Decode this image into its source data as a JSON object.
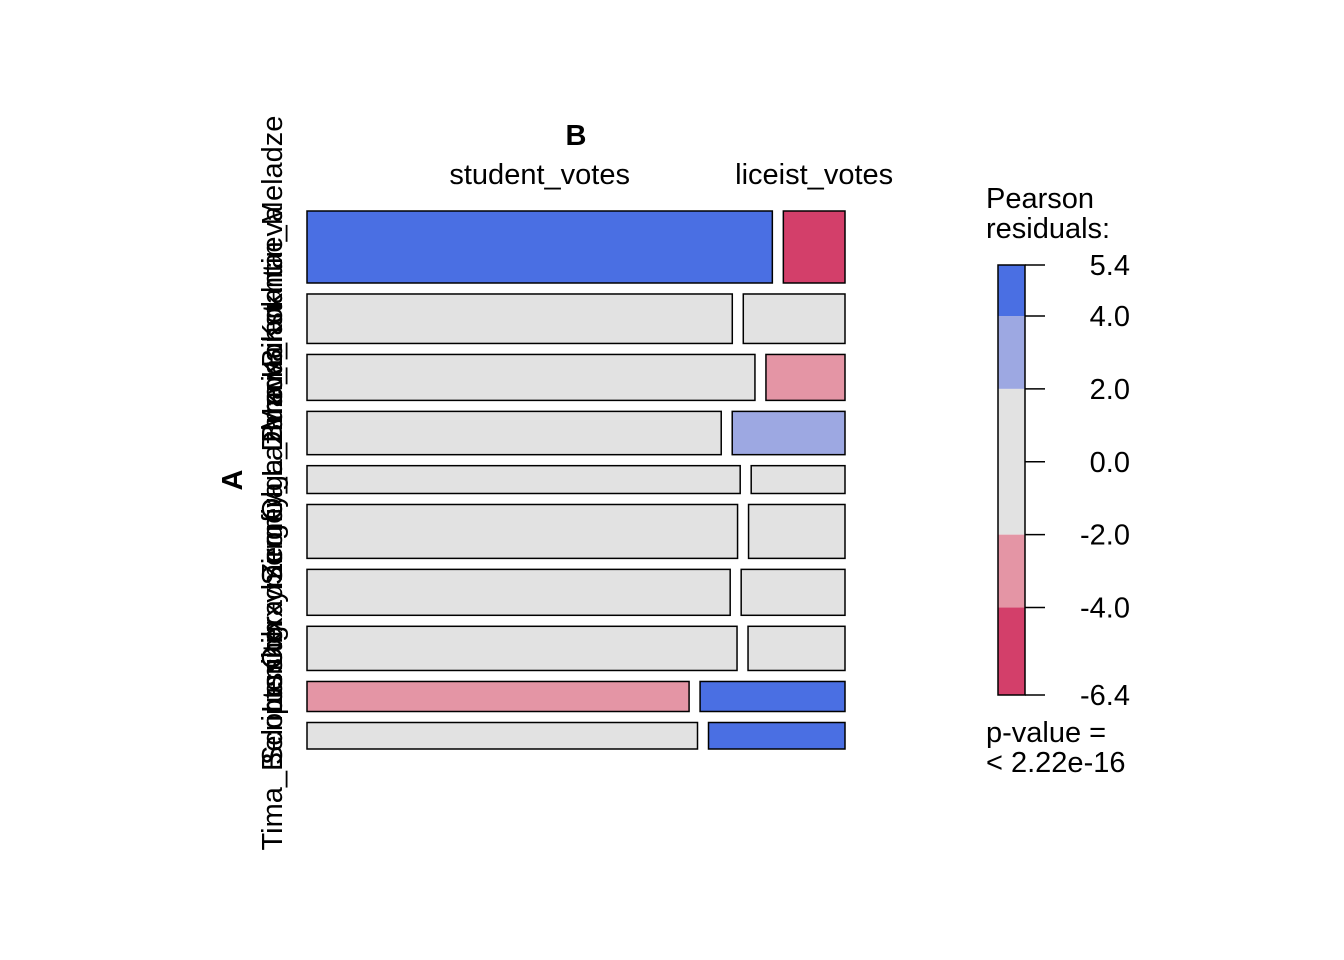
{
  "chart_data": {
    "type": "mosaic",
    "row_variable": "A",
    "col_variable": "B",
    "columns": [
      "student_votes",
      "liceist_votes"
    ],
    "rows": [
      {
        "label": "Konstantin_Meladze",
        "col_fraction": [
          0.883,
          0.117
        ],
        "residual_class": [
          "4.0 to 5.4",
          "-6.4 to -4.0"
        ]
      },
      {
        "label": "Maria_Kokhtaeva",
        "col_fraction": [
          0.807,
          0.193
        ],
        "residual_class": [
          "-2.0 to 2.0",
          "-2.0 to 2.0"
        ]
      },
      {
        "label": "Dima_Bilan",
        "col_fraction": [
          0.85,
          0.15
        ],
        "residual_class": [
          "-2.0 to 2.0",
          "-4.0 to -2.0"
        ]
      },
      {
        "label": "Olga_Buzova",
        "col_fraction": [
          0.786,
          0.214
        ],
        "residual_class": [
          "-2.0 to 2.0",
          "2.0 to 4.0"
        ]
      },
      {
        "label": "Sergey_Lazarev",
        "col_fraction": [
          0.822,
          0.178
        ],
        "residual_class": [
          "-2.0 to 2.0",
          "-2.0 to 2.0"
        ]
      },
      {
        "label": "Zemfira",
        "col_fraction": [
          0.817,
          0.183
        ],
        "residual_class": [
          "-2.0 to 2.0",
          "-2.0 to 2.0"
        ]
      },
      {
        "label": "Oxxxymiron",
        "col_fraction": [
          0.803,
          0.197
        ],
        "residual_class": [
          "-2.0 to 2.0",
          "-2.0 to 2.0"
        ]
      },
      {
        "label": "Leningrad",
        "col_fraction": [
          0.816,
          0.184
        ],
        "residual_class": [
          "-2.0 to 2.0",
          "-2.0 to 2.0"
        ]
      },
      {
        "label": "Scriptonite",
        "col_fraction": [
          0.725,
          0.275
        ],
        "residual_class": [
          "-4.0 to -2.0",
          "5.4"
        ]
      },
      {
        "label": "Tima_Belorusskih",
        "col_fraction": [
          0.741,
          0.259
        ],
        "residual_class": [
          "-2.0 to 2.0",
          "5.4"
        ]
      }
    ],
    "row_fraction": [
      0.163,
      0.112,
      0.104,
      0.098,
      0.063,
      0.122,
      0.104,
      0.1,
      0.068,
      0.06
    ],
    "legend": {
      "title_line1": "Pearson",
      "title_line2": "residuals:",
      "ticks": [
        "5.4",
        "4.0",
        "2.0",
        "0.0",
        "-2.0",
        "-4.0",
        "-6.4"
      ],
      "tick_values": [
        5.4,
        4.0,
        2.0,
        0.0,
        -2.0,
        -4.0,
        -6.4
      ],
      "bands": [
        {
          "from": 4.0,
          "to": 5.4,
          "color": "#4A6FE3"
        },
        {
          "from": 2.0,
          "to": 4.0,
          "color": "#9DA8E2"
        },
        {
          "from": -2.0,
          "to": 2.0,
          "color": "#E2E2E2"
        },
        {
          "from": -4.0,
          "to": -2.0,
          "color": "#E495A5"
        },
        {
          "from": -6.4,
          "to": -4.0,
          "color": "#D33F6A"
        }
      ],
      "pvalue_line1": "p-value =",
      "pvalue_line2": "< 2.22e-16"
    },
    "colors": {
      "strong_positive": "#4A6FE3",
      "positive": "#9DA8E2",
      "neutral": "#E2E2E2",
      "negative": "#E495A5",
      "strong_negative": "#D33F6A"
    }
  }
}
